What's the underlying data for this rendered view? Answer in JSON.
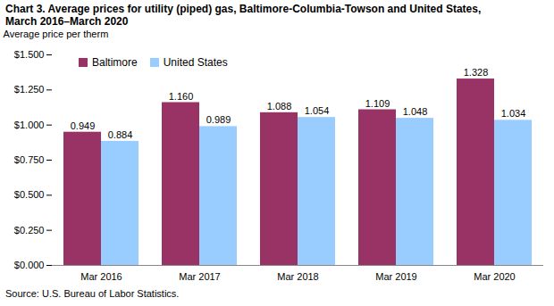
{
  "chart_data": {
    "type": "bar",
    "title": "Chart 3. Average prices for utility (piped) gas, Baltimore-Columbia-Towson and United States, March 2016–March 2020",
    "y_label": "Average price per therm",
    "caption": "Source: U.S. Bureau of Labor Statistics.",
    "categories": [
      "Mar 2016",
      "Mar 2017",
      "Mar 2018",
      "Mar 2019",
      "Mar 2020"
    ],
    "series": [
      {
        "name": "Baltimore",
        "color": "#993366",
        "values": [
          0.949,
          1.16,
          1.088,
          1.109,
          1.328
        ],
        "value_labels": [
          "0.949",
          "1.160",
          "1.088",
          "1.109",
          "1.328"
        ]
      },
      {
        "name": "United States",
        "color": "#99ccff",
        "values": [
          0.884,
          0.989,
          1.054,
          1.048,
          1.034
        ],
        "value_labels": [
          "0.884",
          "0.989",
          "1.054",
          "1.048",
          "1.034"
        ]
      }
    ],
    "ylim": [
      0,
      1.5
    ],
    "yticks": [
      {
        "value": 0,
        "label": "$0.000"
      },
      {
        "value": 0.25,
        "label": "$0.250"
      },
      {
        "value": 0.5,
        "label": "$0.500"
      },
      {
        "value": 0.75,
        "label": "$0.750"
      },
      {
        "value": 1,
        "label": "$1.000"
      },
      {
        "value": 1.25,
        "label": "$1.250"
      },
      {
        "value": 1.5,
        "label": "$1.500"
      }
    ],
    "grid": false,
    "legend": "top-left",
    "data_labels": true
  }
}
